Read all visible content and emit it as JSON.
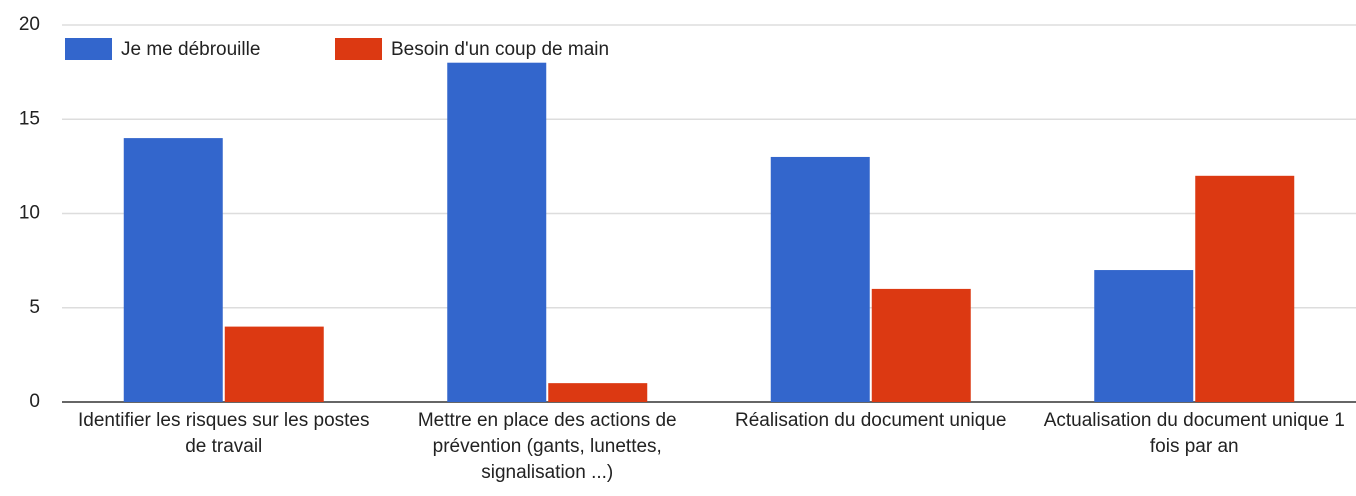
{
  "chart_data": {
    "type": "bar",
    "categories": [
      "Identifier les risques sur les postes de travail",
      "Mettre en place des actions de prévention (gants, lunettes, signalisation ...)",
      "Réalisation du document unique",
      "Actualisation du document unique 1 fois par an"
    ],
    "series": [
      {
        "name": "Je me débrouille",
        "color": "#3366cc",
        "values": [
          14,
          18,
          13,
          7
        ]
      },
      {
        "name": "Besoin d'un coup de main",
        "color": "#dc3912",
        "values": [
          4,
          1,
          6,
          12
        ]
      }
    ],
    "ylim": [
      0,
      20
    ],
    "yticks": [
      0,
      5,
      10,
      15,
      20
    ],
    "grid": true,
    "legend": "top"
  }
}
